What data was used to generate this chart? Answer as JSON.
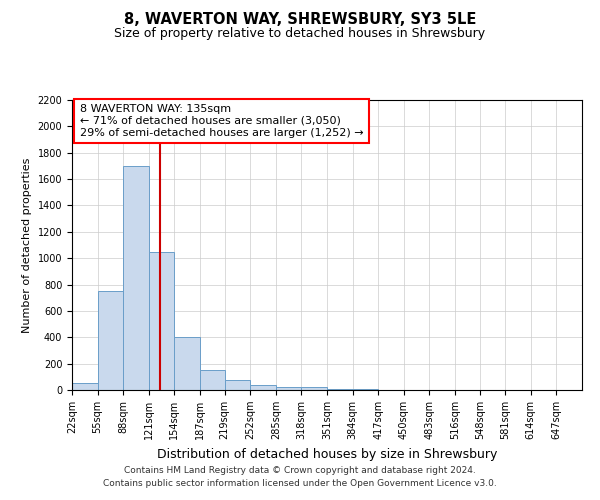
{
  "title1": "8, WAVERTON WAY, SHREWSBURY, SY3 5LE",
  "title2": "Size of property relative to detached houses in Shrewsbury",
  "xlabel": "Distribution of detached houses by size in Shrewsbury",
  "ylabel": "Number of detached properties",
  "annotation_line1": "8 WAVERTON WAY: 135sqm",
  "annotation_line2": "← 71% of detached houses are smaller (3,050)",
  "annotation_line3": "29% of semi-detached houses are larger (1,252) →",
  "property_size": 135,
  "bin_edges": [
    22,
    55,
    88,
    121,
    154,
    187,
    219,
    252,
    285,
    318,
    351,
    384,
    417,
    450,
    483,
    516,
    548,
    581,
    614,
    647,
    680
  ],
  "bar_values": [
    50,
    750,
    1700,
    1050,
    400,
    150,
    75,
    35,
    25,
    20,
    10,
    5,
    2,
    1,
    1,
    0,
    0,
    0,
    0,
    0
  ],
  "bar_color": "#c9d9ed",
  "bar_edge_color": "#6a9ec9",
  "marker_color": "#cc0000",
  "background_color": "#ffffff",
  "grid_color": "#cccccc",
  "ylim": [
    0,
    2200
  ],
  "yticks": [
    0,
    200,
    400,
    600,
    800,
    1000,
    1200,
    1400,
    1600,
    1800,
    2000,
    2200
  ],
  "footer1": "Contains HM Land Registry data © Crown copyright and database right 2024.",
  "footer2": "Contains public sector information licensed under the Open Government Licence v3.0.",
  "title1_fontsize": 10.5,
  "title2_fontsize": 9,
  "ylabel_fontsize": 8,
  "xlabel_fontsize": 9,
  "tick_fontsize": 7,
  "footer_fontsize": 6.5,
  "ann_fontsize": 8
}
